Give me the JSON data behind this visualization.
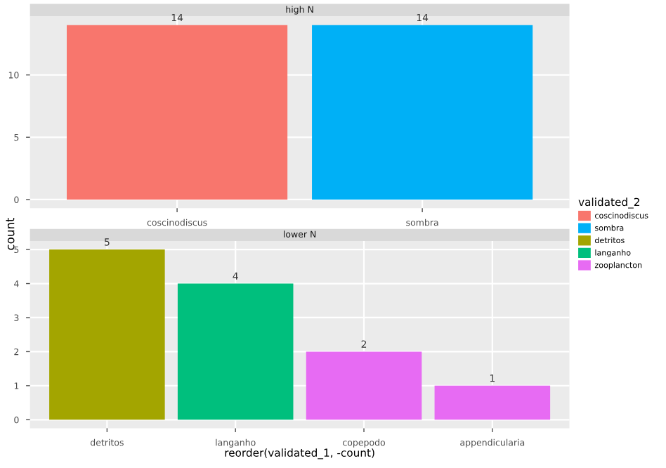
{
  "chart_data": [
    {
      "type": "bar",
      "title": "high N",
      "ylabel": "count",
      "legend_title": "validated_2",
      "legend": "right",
      "grid": true,
      "data_labels": true,
      "categories": [
        "coscinodiscus",
        "sombra"
      ],
      "ylim": [
        -0.7,
        14.7
      ],
      "yticks": [
        0,
        5,
        10
      ],
      "series": [
        {
          "name": "coscinodiscus",
          "color": "#f8766d",
          "values": [
            14,
            null
          ]
        },
        {
          "name": "sombra",
          "color": "#00b0f6",
          "values": [
            null,
            14
          ]
        }
      ]
    },
    {
      "type": "bar",
      "title": "lower N",
      "xlabel": "reorder(validated_1, -count)",
      "legend": "right",
      "grid": true,
      "data_labels": true,
      "categories": [
        "detritos",
        "langanho",
        "copepodo",
        "appendicularia"
      ],
      "ylim": [
        -0.25,
        5.25
      ],
      "yticks": [
        0,
        1,
        2,
        3,
        4,
        5
      ],
      "series": [
        {
          "name": "detritos",
          "color": "#a3a500",
          "values": [
            5,
            null,
            null,
            null
          ]
        },
        {
          "name": "langanho",
          "color": "#00bf7d",
          "values": [
            null,
            4,
            null,
            null
          ]
        },
        {
          "name": "zooplancton",
          "color": "#e76bf3",
          "values": [
            null,
            null,
            2,
            1
          ]
        }
      ]
    }
  ]
}
